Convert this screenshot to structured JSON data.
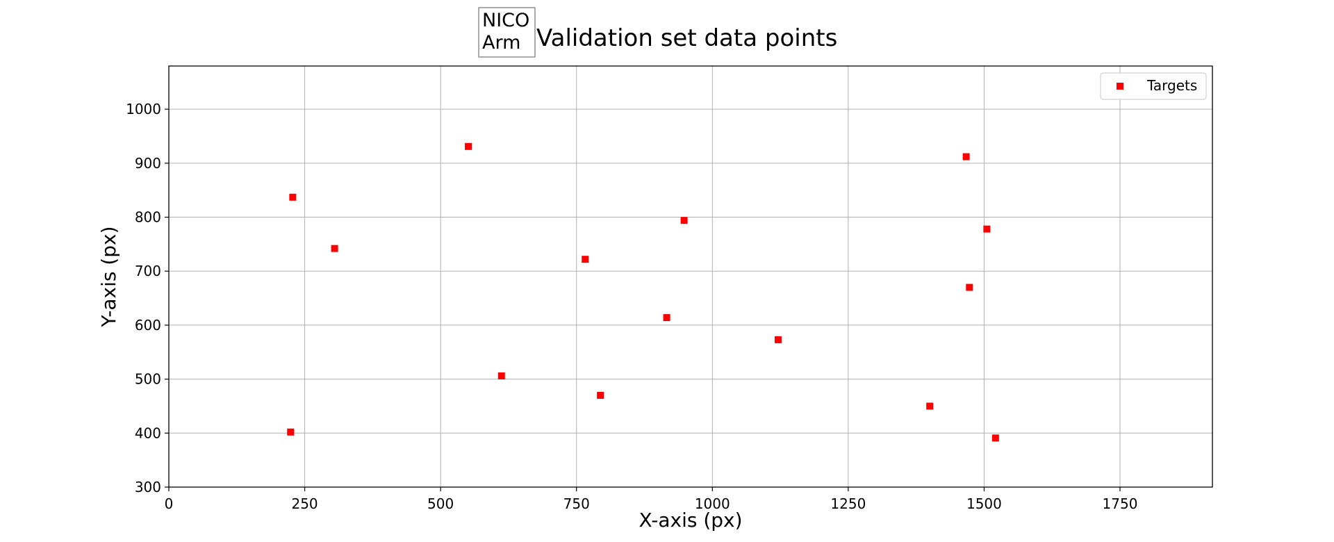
{
  "chart_data": {
    "type": "scatter",
    "title": "Validation set data points",
    "title_badge": [
      "NICO",
      "Arm"
    ],
    "xlabel": "X-axis (px)",
    "ylabel": "Y-axis (px)",
    "xlim": [
      0,
      1920
    ],
    "ylim": [
      300,
      1080
    ],
    "xticks": [
      0,
      250,
      500,
      750,
      1000,
      1250,
      1500,
      1750
    ],
    "yticks": [
      300,
      400,
      500,
      600,
      700,
      800,
      900,
      1000
    ],
    "xtick_labels": [
      "0",
      "250",
      "500",
      "750",
      "1000",
      "1250",
      "1500",
      "1750"
    ],
    "ytick_labels": [
      "300",
      "400",
      "500",
      "600",
      "700",
      "800",
      "900",
      "1000"
    ],
    "grid": true,
    "legend_position": "top-right",
    "series": [
      {
        "name": "Targets",
        "color": "#ff0000",
        "marker": "square",
        "points": [
          {
            "x": 228,
            "y": 837
          },
          {
            "x": 224,
            "y": 402
          },
          {
            "x": 305,
            "y": 742
          },
          {
            "x": 551,
            "y": 931
          },
          {
            "x": 612,
            "y": 506
          },
          {
            "x": 766,
            "y": 722
          },
          {
            "x": 794,
            "y": 470
          },
          {
            "x": 916,
            "y": 614
          },
          {
            "x": 948,
            "y": 794
          },
          {
            "x": 1121,
            "y": 573
          },
          {
            "x": 1400,
            "y": 450
          },
          {
            "x": 1467,
            "y": 912
          },
          {
            "x": 1473,
            "y": 670
          },
          {
            "x": 1505,
            "y": 778
          },
          {
            "x": 1521,
            "y": 391
          }
        ]
      }
    ]
  }
}
